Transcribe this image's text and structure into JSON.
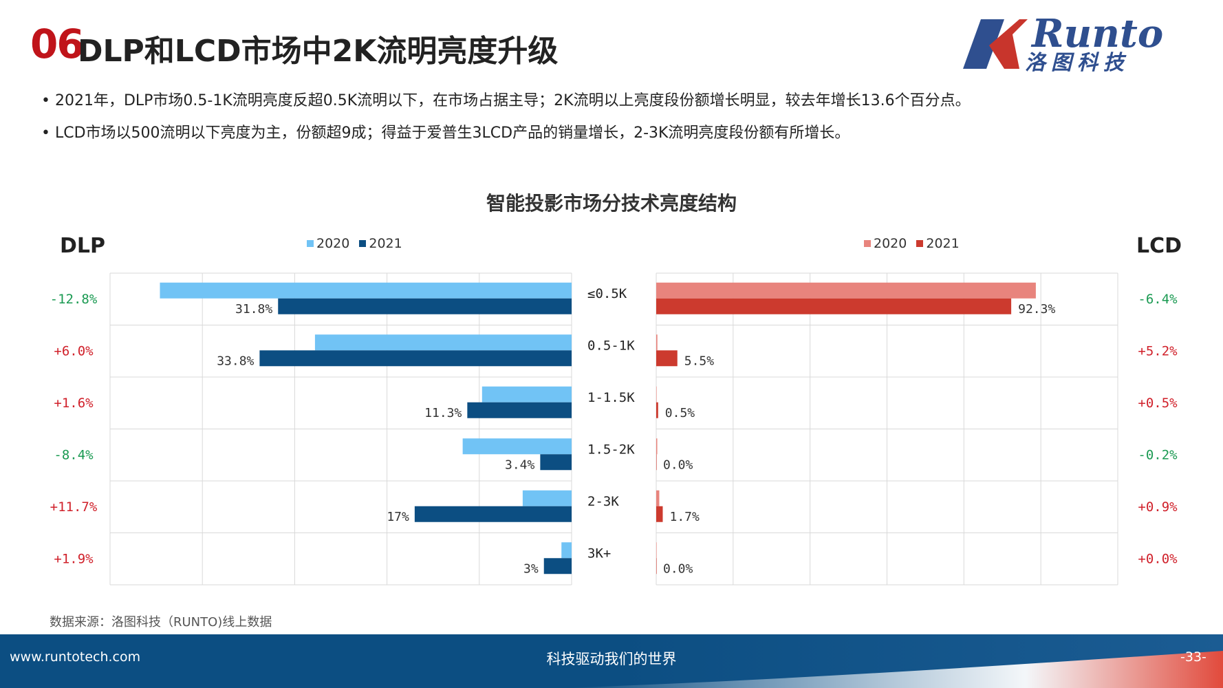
{
  "header": {
    "number": "06",
    "title": "DLP和LCD市场中2K流明亮度升级"
  },
  "logo": {
    "brand": "Runto",
    "sub": "洛图科技"
  },
  "bullets": [
    "• 2021年，DLP市场0.5-1K流明亮度反超0.5K流明以下，在市场占据主导；2K流明以上亮度段份额增长明显，较去年增长13.6个百分点。",
    "• LCD市场以500流明以下亮度为主，份额超9成；得益于爱普生3LCD产品的销量增长，2-3K流明亮度段份额有所增长。"
  ],
  "chart_data": {
    "type": "bar",
    "title": "智能投影市场分技术亮度结构",
    "categories": [
      "≤0.5K",
      "0.5-1K",
      "1-1.5K",
      "1.5-2K",
      "2-3K",
      "3K+"
    ],
    "panels": [
      {
        "name": "DLP",
        "direction": "left",
        "xlim": [
          0,
          50
        ],
        "series": [
          {
            "name": "2020",
            "values": [
              44.6,
              27.8,
              9.7,
              11.8,
              5.3,
              1.1
            ],
            "color": "#71c3f5"
          },
          {
            "name": "2021",
            "values": [
              31.8,
              33.8,
              11.3,
              3.4,
              17,
              3
            ],
            "color": "#0c4e82"
          }
        ],
        "data_labels": [
          "31.8%",
          "33.8%",
          "11.3%",
          "3.4%",
          "17%",
          "3%"
        ],
        "changes": [
          "-12.8%",
          "+6.0%",
          "+1.6%",
          "-8.4%",
          "+11.7%",
          "+1.9%"
        ]
      },
      {
        "name": "LCD",
        "direction": "right",
        "xlim": [
          0,
          120
        ],
        "series": [
          {
            "name": "2020",
            "values": [
              98.7,
              0.3,
              0,
              0.2,
              0.8,
              0
            ],
            "color": "#e8847d"
          },
          {
            "name": "2021",
            "values": [
              92.3,
              5.5,
              0.5,
              0.0,
              1.7,
              0.0
            ],
            "color": "#cc3a2e"
          }
        ],
        "data_labels": [
          "92.3%",
          "5.5%",
          "0.5%",
          "0.0%",
          "1.7%",
          "0.0%"
        ],
        "changes": [
          "-6.4%",
          "+5.2%",
          "+0.5%",
          "-0.2%",
          "+0.9%",
          "+0.0%"
        ]
      }
    ],
    "colors": {
      "positive": "#d0202a",
      "negative": "#1a9a52"
    }
  },
  "source": "数据来源：洛图科技（RUNTO)线上数据",
  "footer": {
    "url": "www.runtotech.com",
    "slogan": "科技驱动我们的世界",
    "page": "-33-"
  }
}
